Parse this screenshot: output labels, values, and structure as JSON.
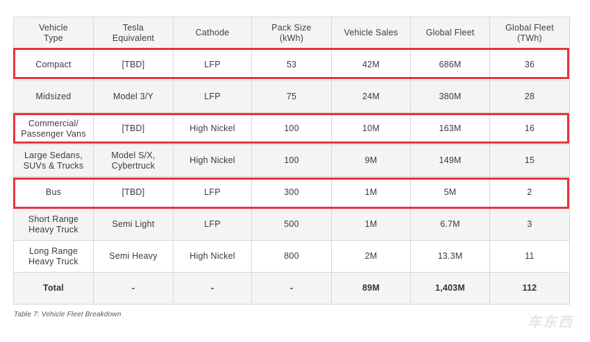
{
  "table": {
    "headers": [
      [
        "Vehicle",
        "Type"
      ],
      [
        "Tesla",
        "Equivalent"
      ],
      [
        "Cathode"
      ],
      [
        "Pack Size",
        "(kWh)"
      ],
      [
        "Vehicle Sales"
      ],
      [
        "Global Fleet"
      ],
      [
        "Global Fleet",
        "(TWh)"
      ]
    ],
    "rows": [
      [
        [
          "Compact"
        ],
        [
          "[TBD]"
        ],
        [
          "LFP"
        ],
        [
          "53"
        ],
        [
          "42M"
        ],
        [
          "686M"
        ],
        [
          "36"
        ]
      ],
      [
        [
          "Midsized"
        ],
        [
          "Model 3/Y"
        ],
        [
          "LFP"
        ],
        [
          "75"
        ],
        [
          "24M"
        ],
        [
          "380M"
        ],
        [
          "28"
        ]
      ],
      [
        [
          "Commercial/",
          "Passenger Vans"
        ],
        [
          "[TBD]"
        ],
        [
          "High Nickel"
        ],
        [
          "100"
        ],
        [
          "10M"
        ],
        [
          "163M"
        ],
        [
          "16"
        ]
      ],
      [
        [
          "Large Sedans,",
          "SUVs & Trucks"
        ],
        [
          "Model S/X,",
          "Cybertruck"
        ],
        [
          "High Nickel"
        ],
        [
          "100"
        ],
        [
          "9M"
        ],
        [
          "149M"
        ],
        [
          "15"
        ]
      ],
      [
        [
          "Bus"
        ],
        [
          "[TBD]"
        ],
        [
          "LFP"
        ],
        [
          "300"
        ],
        [
          "1M"
        ],
        [
          "5M"
        ],
        [
          "2"
        ]
      ],
      [
        [
          "Short Range",
          "Heavy Truck"
        ],
        [
          "Semi Light"
        ],
        [
          "LFP"
        ],
        [
          "500"
        ],
        [
          "1M"
        ],
        [
          "6.7M"
        ],
        [
          "3"
        ]
      ],
      [
        [
          "Long Range",
          "Heavy Truck"
        ],
        [
          "Semi Heavy"
        ],
        [
          "High Nickel"
        ],
        [
          "800"
        ],
        [
          "2M"
        ],
        [
          "13.3M"
        ],
        [
          "11"
        ]
      ],
      [
        [
          "Total"
        ],
        [
          "-"
        ],
        [
          "-"
        ],
        [
          "-"
        ],
        [
          "89M"
        ],
        [
          "1,403M"
        ],
        [
          "112"
        ]
      ]
    ],
    "highlighted_rows": [
      "Compact",
      "Commercial/Passenger Vans",
      "Bus"
    ],
    "highlight_color": "#e5343c"
  },
  "caption": "Table 7: Vehicle Fleet Breakdown",
  "watermark": "车东西"
}
